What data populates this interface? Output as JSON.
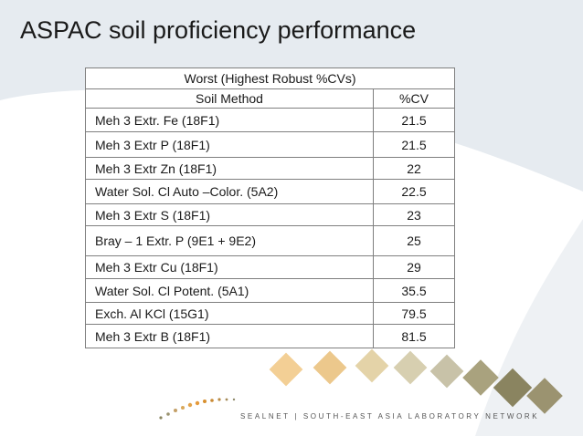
{
  "slide": {
    "title": "ASPAC soil proficiency performance"
  },
  "table": {
    "caption": "Worst (Highest Robust %CVs)",
    "columns": [
      "Soil Method",
      "%CV"
    ],
    "rows": [
      {
        "method": "Meh 3 Extr. Fe (18F1)",
        "cv": "21.5"
      },
      {
        "method": "Meh 3 Extr P (18F1)",
        "cv": "21.5"
      },
      {
        "method": "Meh 3 Extr Zn (18F1)",
        "cv": "22"
      },
      {
        "method": "Water Sol. Cl  Auto –Color. (5A2)",
        "cv": "22.5"
      },
      {
        "method": "Meh 3 Extr S (18F1)",
        "cv": "23"
      },
      {
        "method": "Bray – 1 Extr. P (9E1 + 9E2)",
        "cv": "25"
      },
      {
        "method": "Meh 3 Extr Cu (18F1)",
        "cv": "29"
      },
      {
        "method": "Water Sol. Cl  Potent. (5A1)",
        "cv": "35.5"
      },
      {
        "method": "Exch. Al KCl (15G1)",
        "cv": "79.5"
      },
      {
        "method": "Meh 3 Extr B (18F1)",
        "cv": "81.5"
      }
    ]
  },
  "footer": {
    "network_text": "SEALNET | SOUTH-EAST ASIA LABORATORY NETWORK"
  },
  "colors": {
    "accent_green": "#3a7d22",
    "background_swoosh": "#e6ebf0",
    "diamond_gold": "#e8b86a",
    "diamond_olive": "#8a8460"
  }
}
